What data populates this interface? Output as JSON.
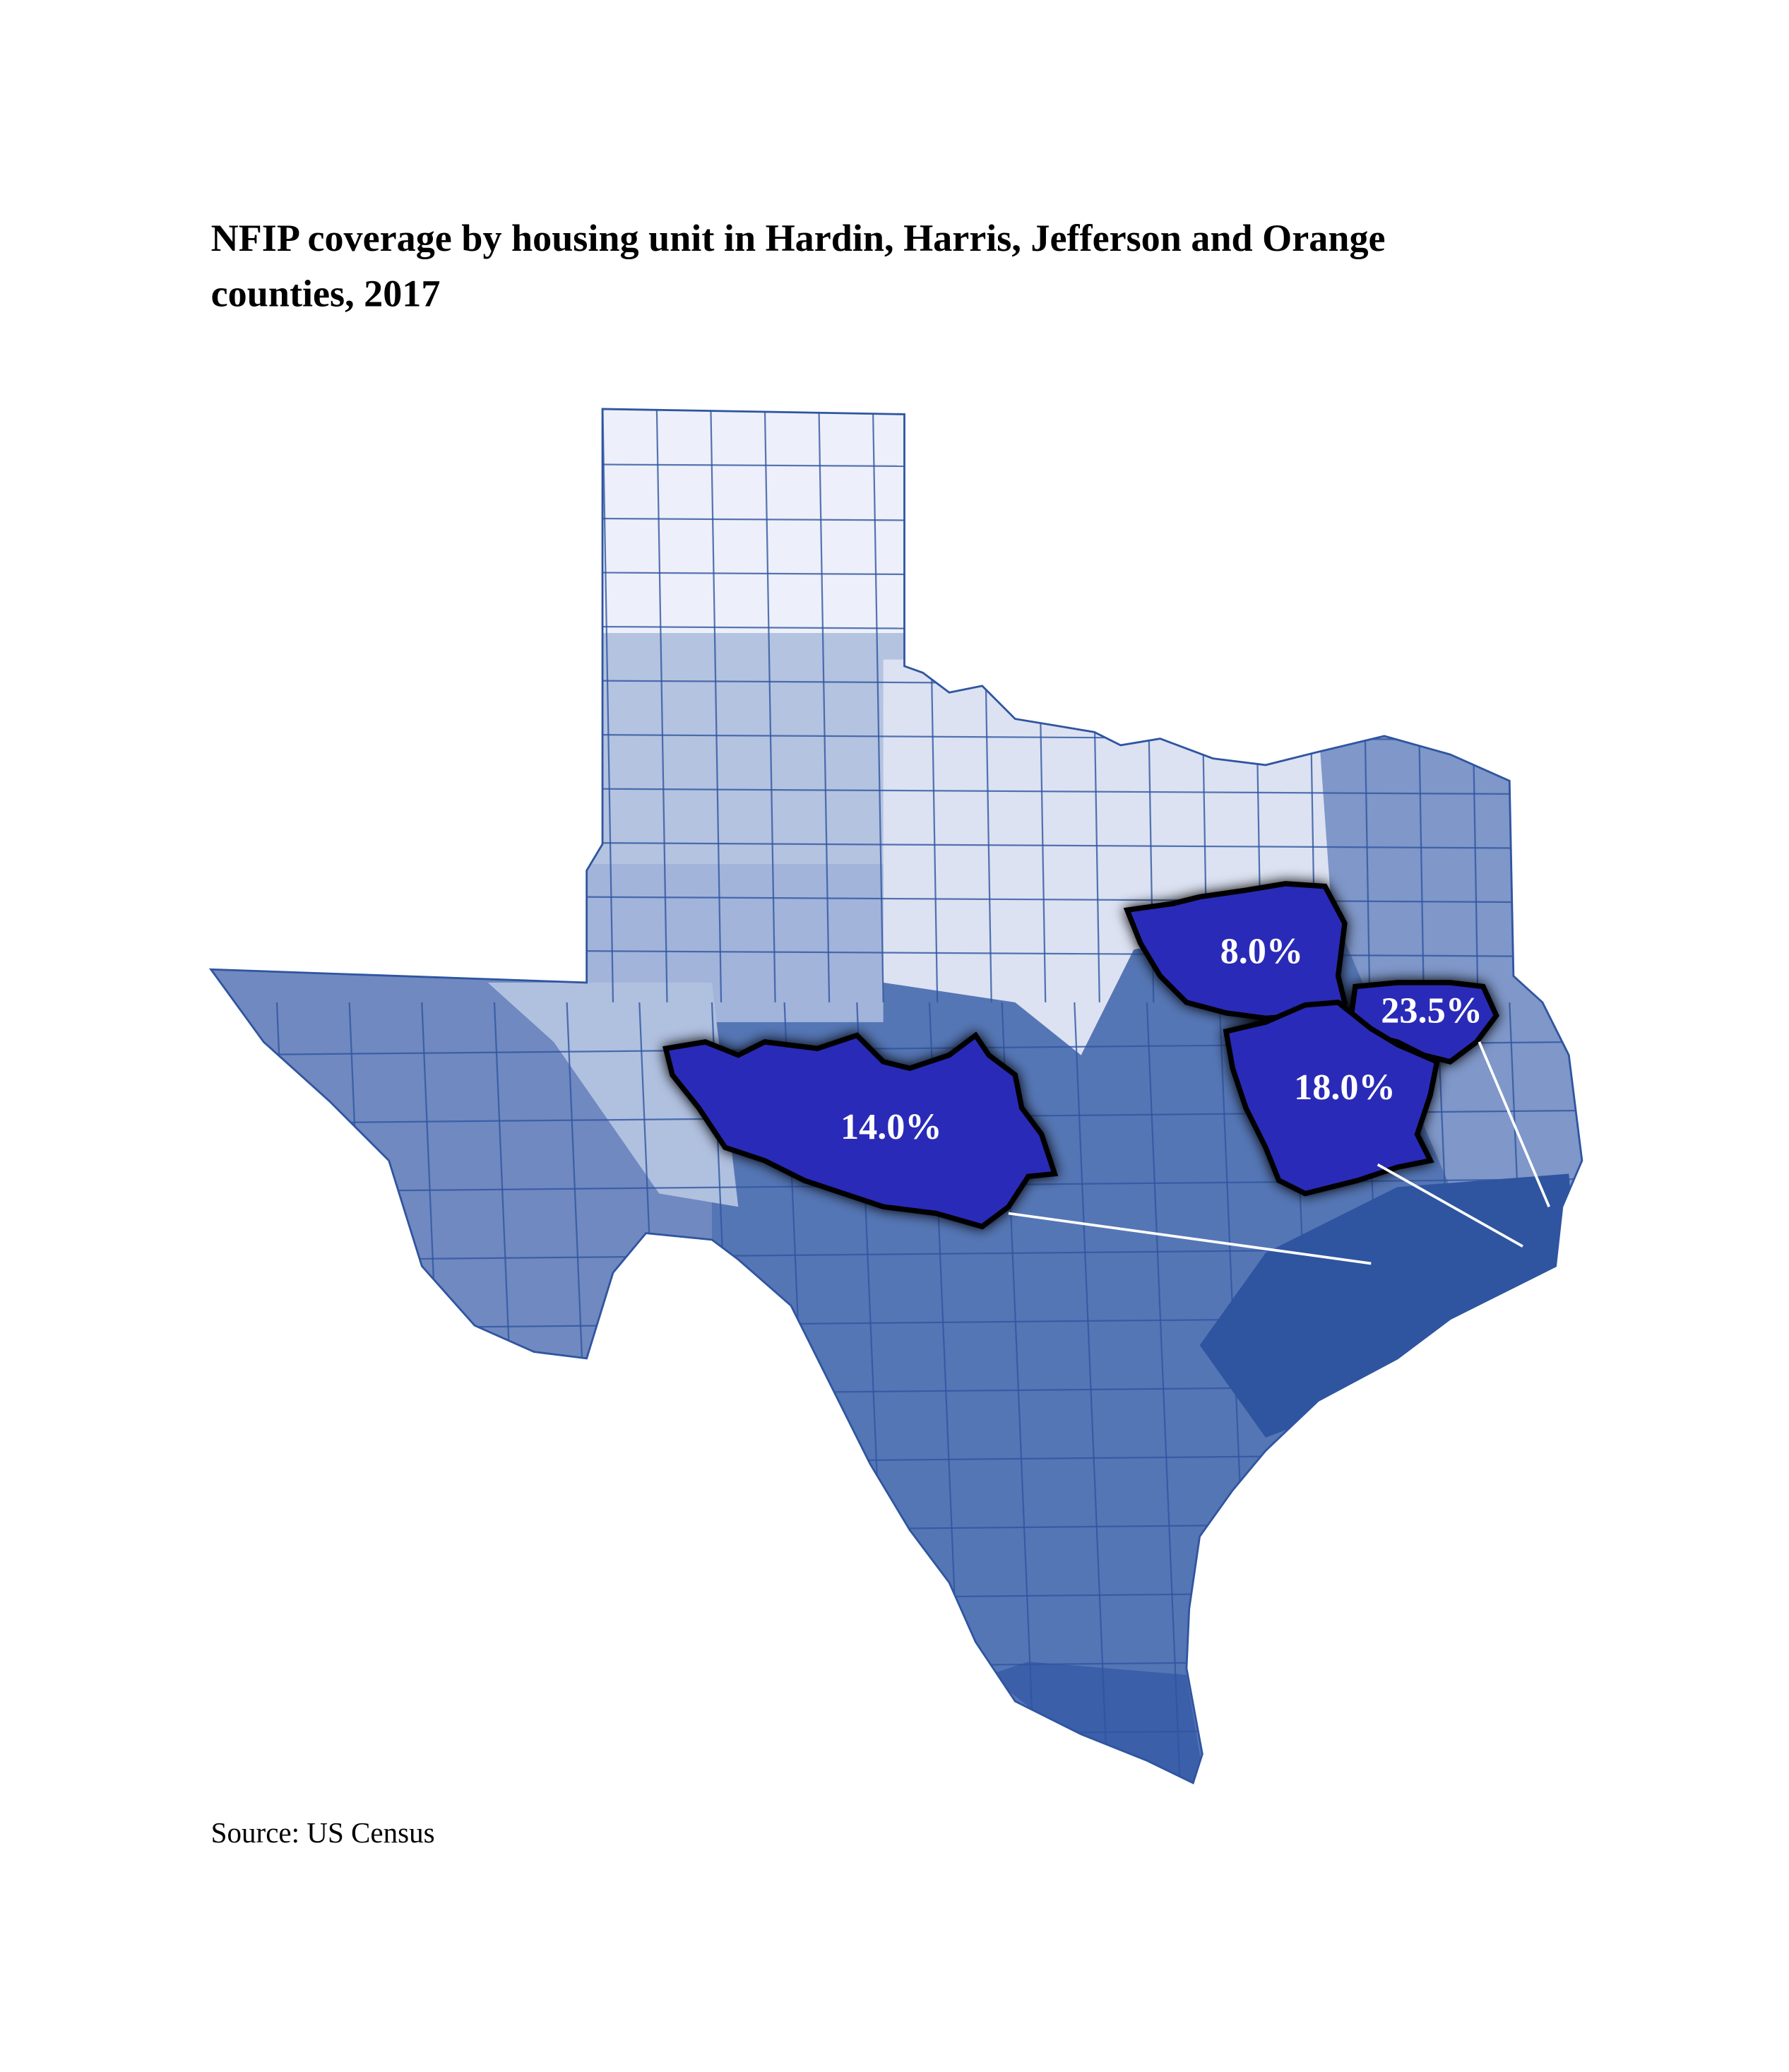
{
  "title": "NFIP coverage by housing unit in Hardin, Harris, Jefferson and Orange counties, 2017",
  "source": "Source: US Census",
  "callouts": [
    "8.0%",
    "23.5%",
    "18.0%",
    "14.0%"
  ]
}
